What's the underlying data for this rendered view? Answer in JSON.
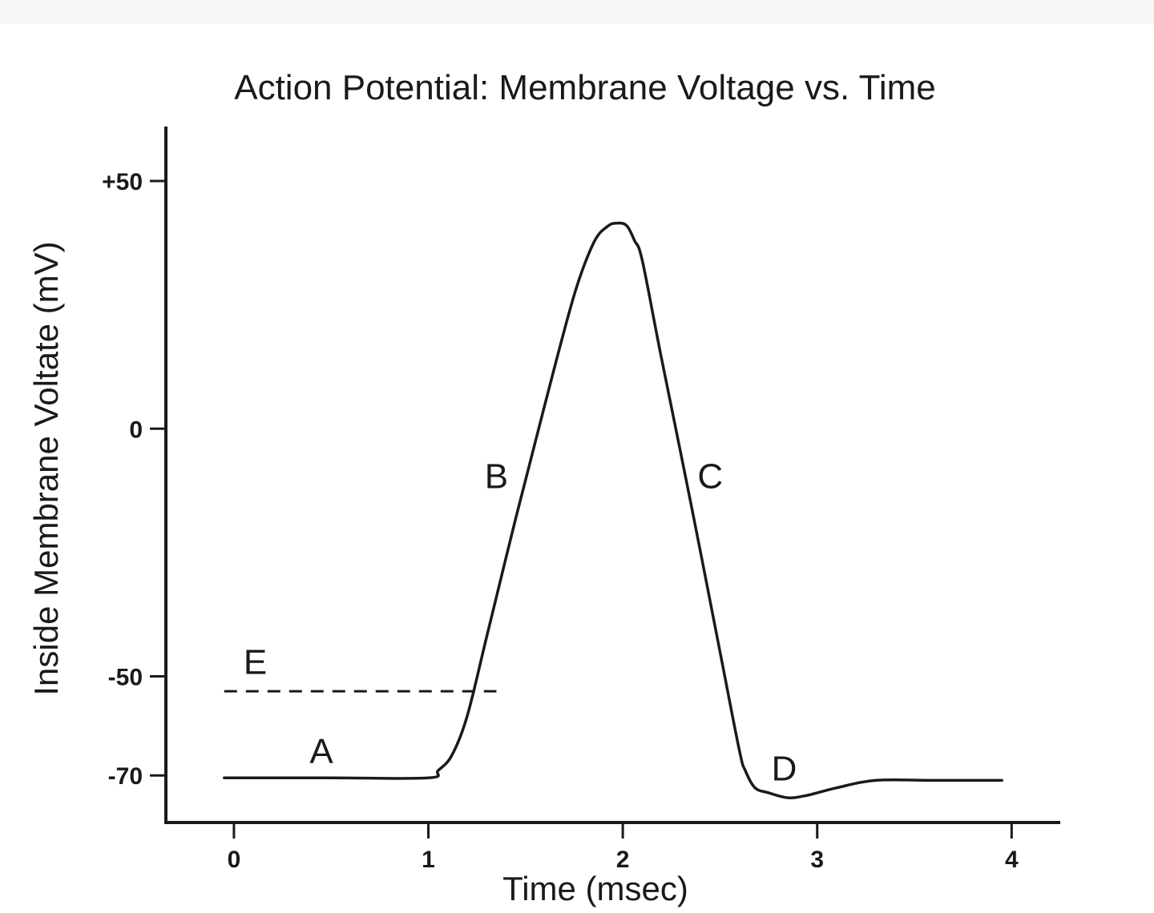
{
  "chart_data": {
    "type": "line",
    "title": "Action Potential: Membrane Voltage vs. Time",
    "xlabel": "Time (msec)",
    "ylabel": "Inside Membrane Voltate (mV)",
    "xlim": [
      -0.35,
      4.25
    ],
    "ylim": [
      -79.5,
      61
    ],
    "x_ticks": [
      0,
      1,
      2,
      3,
      4
    ],
    "x_tick_labels": [
      "0",
      "1",
      "2",
      "3",
      "4"
    ],
    "y_ticks": [
      50,
      0,
      -50,
      -70
    ],
    "y_tick_labels": [
      "+50",
      "0",
      "-50",
      "-70"
    ],
    "grid": false,
    "legend": "none",
    "series": [
      {
        "x": [
          -0.05,
          0.5,
          1.0,
          1.05,
          1.12,
          1.2,
          1.3,
          1.45,
          1.6,
          1.75,
          1.85,
          1.92,
          1.97,
          2.02,
          2.06,
          2.1,
          2.2,
          2.35,
          2.5,
          2.6,
          2.63,
          2.68,
          2.75,
          2.85,
          2.95,
          3.1,
          3.3,
          3.6,
          3.95
        ],
        "y": [
          -70.5,
          -70.5,
          -70.5,
          -69,
          -66,
          -58,
          -42,
          -18,
          5,
          27,
          37.5,
          40.8,
          41.5,
          41,
          38,
          34,
          14,
          -15,
          -45,
          -65,
          -69,
          -72.5,
          -73.5,
          -74.5,
          -74,
          -72.5,
          -71,
          -71,
          -71
        ]
      }
    ],
    "threshold": {
      "y": -53,
      "x": [
        -0.05,
        1.35
      ],
      "style": "dashed"
    },
    "annotations": [
      {
        "text": "A",
        "x": 0.45,
        "y": -67.5
      },
      {
        "text": "B",
        "x": 1.35,
        "y": -12
      },
      {
        "text": "C",
        "x": 2.45,
        "y": -12
      },
      {
        "text": "D",
        "x": 2.83,
        "y": -71
      },
      {
        "text": "E",
        "x": 0.11,
        "y": -49.5
      }
    ]
  }
}
